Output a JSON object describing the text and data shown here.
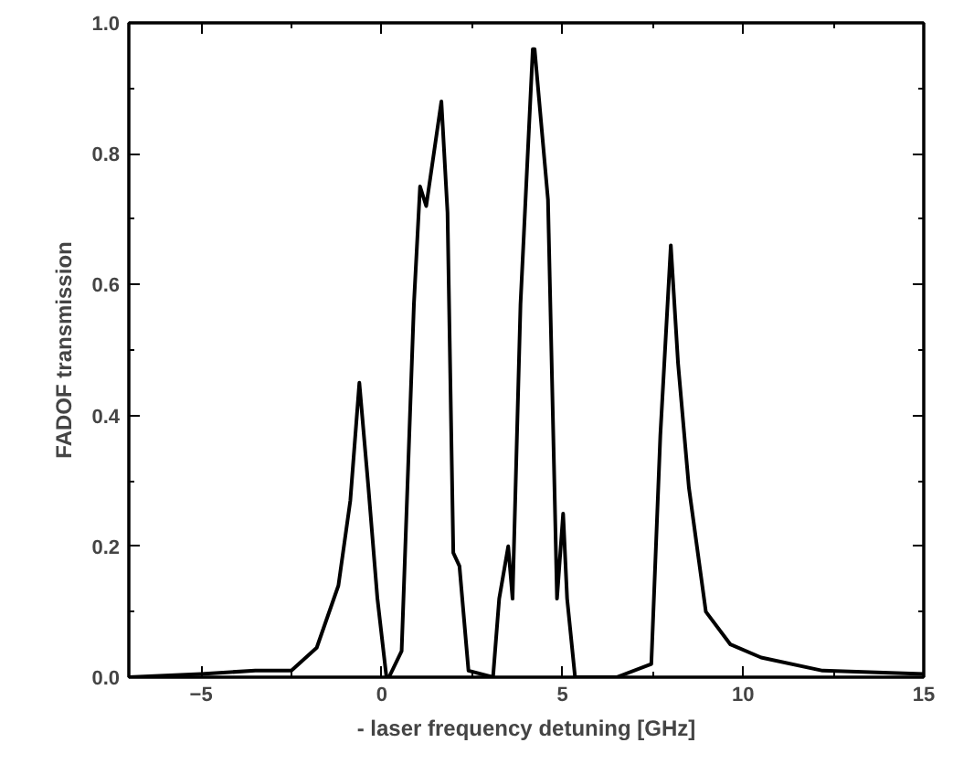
{
  "chart_data": {
    "type": "line",
    "xlabel": "- laser frequency detuning [GHz]",
    "ylabel": "FADOF transmission",
    "xlim": [
      -7,
      15
    ],
    "ylim": [
      0,
      1.0
    ],
    "xticks": [
      -5,
      0,
      5,
      10,
      15
    ],
    "yticks": [
      {
        "value": 0,
        "label": "0.0"
      },
      {
        "value": 0.2,
        "label": "0.2"
      },
      {
        "value": 0.4,
        "label": "0.4"
      },
      {
        "value": 0.6,
        "label": "0.6"
      },
      {
        "value": 0.8,
        "label": "0.8"
      },
      {
        "value": 1.0,
        "label": "1.0"
      }
    ],
    "grid": false,
    "marker": "none",
    "line_style": "solid",
    "series": [
      {
        "color": "#000000",
        "x": [
          -7,
          -5,
          -3.5,
          -2.5,
          -1.8,
          -1.2,
          -0.87,
          -0.62,
          -0.37,
          -0.12,
          0.13,
          0.2,
          0.55,
          0.89,
          1.06,
          1.23,
          1.65,
          1.82,
          1.98,
          2.15,
          2.4,
          3.08,
          3.25,
          3.5,
          3.62,
          3.84,
          4.18,
          4.23,
          4.6,
          4.85,
          5.02,
          5.13,
          5.35,
          6.5,
          7.46,
          7.71,
          8.0,
          8.2,
          8.5,
          8.97,
          9.65,
          10.5,
          12.2,
          15
        ],
        "values": [
          0.0,
          0.005,
          0.01,
          0.01,
          0.045,
          0.14,
          0.27,
          0.45,
          0.29,
          0.12,
          0.0,
          0.0,
          0.04,
          0.57,
          0.75,
          0.72,
          0.88,
          0.71,
          0.19,
          0.17,
          0.01,
          0.0,
          0.12,
          0.2,
          0.12,
          0.57,
          0.96,
          0.96,
          0.73,
          0.12,
          0.25,
          0.12,
          0.0,
          0.0,
          0.02,
          0.37,
          0.66,
          0.48,
          0.29,
          0.1,
          0.05,
          0.03,
          0.01,
          0.005
        ]
      }
    ]
  }
}
